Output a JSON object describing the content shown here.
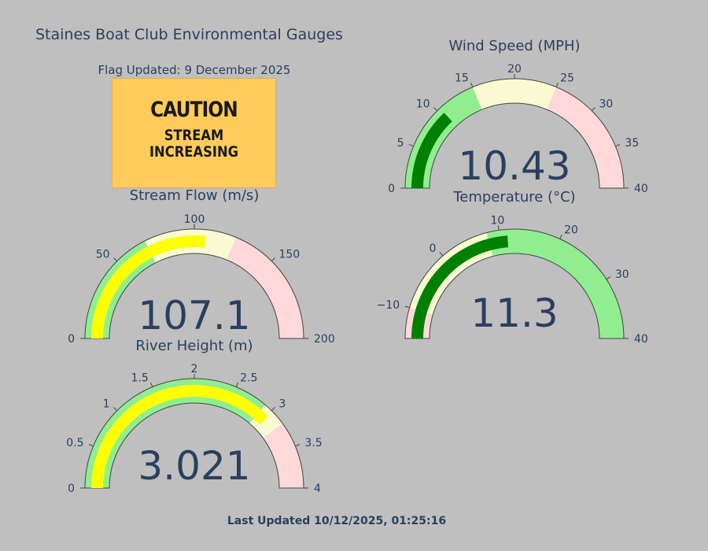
{
  "page": {
    "title": "Staines Boat Club Environmental Gauges",
    "flag_updated": "Flag Updated: 9 December 2025",
    "last_updated": "Last Updated 10/12/2025, 01:25:16"
  },
  "flag": {
    "title": "CAUTION",
    "line1": "STREAM",
    "line2": "INCREASING",
    "color": "#ffcc5c"
  },
  "chart_data": [
    {
      "type": "gauge",
      "id": "wind",
      "title": "Wind Speed (MPH)",
      "value": 10.43,
      "value_text": "10.43",
      "range": [
        0,
        40
      ],
      "ticks": [
        0,
        5,
        10,
        15,
        20,
        25,
        30,
        35,
        40
      ],
      "tick_labels": [
        "0",
        "5",
        "10",
        "15",
        "20",
        "25",
        "30",
        "35",
        "40"
      ],
      "bands": [
        {
          "from": 0,
          "to": 15,
          "color": "#90ee90"
        },
        {
          "from": 15,
          "to": 25,
          "color": "#fafad2"
        },
        {
          "from": 25,
          "to": 40,
          "color": "#ffd9d9"
        }
      ],
      "bar_color": "#008000"
    },
    {
      "type": "gauge",
      "id": "flow",
      "title": "Stream Flow (m/s)",
      "value": 107.1,
      "value_text": "107.1",
      "range": [
        0,
        200
      ],
      "ticks": [
        0,
        50,
        100,
        150,
        200
      ],
      "tick_labels": [
        "0",
        "50",
        "100",
        "150",
        "200"
      ],
      "bands": [
        {
          "from": 0,
          "to": 70,
          "color": "#90ee90"
        },
        {
          "from": 70,
          "to": 125,
          "color": "#fafad2"
        },
        {
          "from": 125,
          "to": 200,
          "color": "#ffd9d9"
        }
      ],
      "bar_color": "#ffff00"
    },
    {
      "type": "gauge",
      "id": "temp",
      "title": "Temperature (°C)",
      "value": 11.3,
      "value_text": "11.3",
      "range": [
        -15,
        40
      ],
      "ticks": [
        -10,
        0,
        10,
        20,
        30,
        40
      ],
      "tick_labels": [
        "−10",
        "0",
        "10",
        "20",
        "30",
        "40"
      ],
      "bands": [
        {
          "from": -15,
          "to": -10,
          "color": "#ffd9d9"
        },
        {
          "from": -10,
          "to": 8,
          "color": "#fafad2"
        },
        {
          "from": 8,
          "to": 40,
          "color": "#90ee90"
        }
      ],
      "bar_color": "#008000"
    },
    {
      "type": "gauge",
      "id": "height",
      "title": "River Height (m)",
      "value": 3.021,
      "value_text": "3.021",
      "range": [
        0,
        4
      ],
      "ticks": [
        0,
        0.5,
        1,
        1.5,
        2,
        2.5,
        3,
        3.5,
        4
      ],
      "tick_labels": [
        "0",
        "0.5",
        "1",
        "1.5",
        "2",
        "2.5",
        "3",
        "3.5",
        "4"
      ],
      "bands": [
        {
          "from": 0,
          "to": 2.9,
          "color": "#90ee90"
        },
        {
          "from": 2.9,
          "to": 3.2,
          "color": "#fafad2"
        },
        {
          "from": 3.2,
          "to": 4,
          "color": "#ffd9d9"
        }
      ],
      "bar_color": "#ffff00"
    }
  ]
}
